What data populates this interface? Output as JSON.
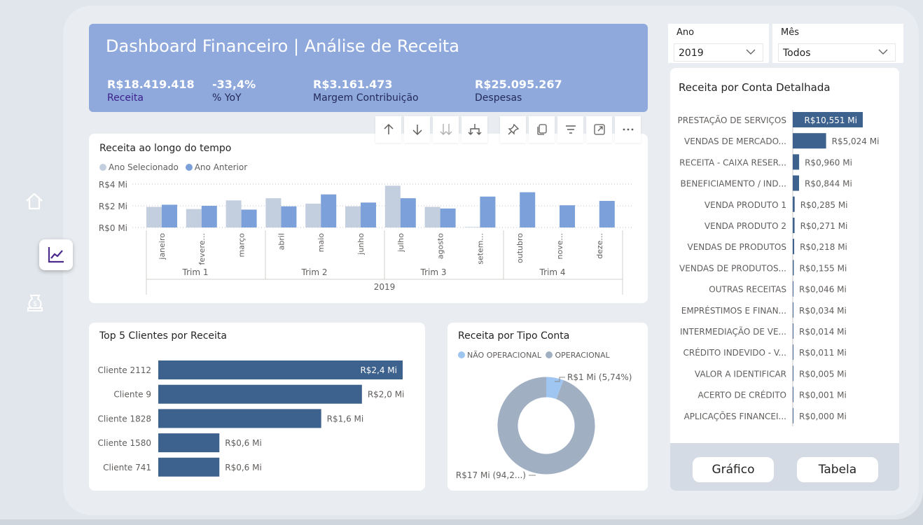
{
  "header": {
    "title": "Dashboard Financeiro | Análise de Receita",
    "kpis": [
      {
        "value": "R$18.419.418",
        "label": "Receita"
      },
      {
        "value": "-33,4%",
        "label": "% YoY"
      },
      {
        "value": "R$3.161.473",
        "label": "Margem Contribuição"
      },
      {
        "value": "R$25.095.267",
        "label": "Despesas"
      }
    ]
  },
  "nav": {
    "icons": [
      "home-icon",
      "trend-chart-icon",
      "money-bag-icon"
    ],
    "active": "trend-chart-icon"
  },
  "toolbar": {
    "icons": [
      "arrow-up-icon",
      "arrow-down-icon",
      "double-arrow-down-icon",
      "fork-down-icon",
      "pin-icon",
      "copy-icon",
      "filter-icon",
      "focus-mode-icon",
      "more-options-icon"
    ]
  },
  "slicers": {
    "ano": {
      "label": "Ano",
      "value": "2019"
    },
    "mes": {
      "label": "Mês",
      "value": "Todos"
    }
  },
  "time_chart": {
    "title": "Receita ao longo do tempo",
    "legend": [
      "Ano Selecionado",
      "Ano Anterior"
    ],
    "colors": {
      "selected": "#c3cfdf",
      "previous": "#7ca0d9"
    },
    "y_ticks": [
      "R$4 Mi",
      "R$2 Mi",
      "R$0 Mi"
    ],
    "months": [
      "janeiro",
      "fevere...",
      "março",
      "abril",
      "maio",
      "junho",
      "julho",
      "agosto",
      "setem...",
      "outubro",
      "nove...",
      "deze..."
    ],
    "quarters": [
      "Trim 1",
      "Trim 2",
      "Trim 3",
      "Trim 4"
    ],
    "year": "2019"
  },
  "clients": {
    "title": "Top 5 Clientes por Receita",
    "color": "#3e628e"
  },
  "tipo_conta": {
    "title": "Receita por Tipo Conta",
    "legend": [
      "NÃO OPERACIONAL",
      "OPERACIONAL"
    ],
    "colors": {
      "nao_operacional": "#9fc6f0",
      "operacional": "#a1afc2"
    },
    "labels": {
      "nao_operacional": "R$1 Mi (5,74%)",
      "operacional": "R$17 Mi (94,2...)"
    }
  },
  "detail": {
    "title": "Receita por Conta Detalhada",
    "color": "#3e628e",
    "buttons": {
      "grafico": "Gráfico",
      "tabela": "Tabela"
    }
  },
  "chart_data": [
    {
      "type": "bar",
      "title": "Receita ao longo do tempo",
      "categories": [
        "janeiro",
        "fevereiro",
        "março",
        "abril",
        "maio",
        "junho",
        "julho",
        "agosto",
        "setembro",
        "outubro",
        "novembro",
        "dezembro"
      ],
      "series": [
        {
          "name": "Ano Selecionado",
          "values": [
            1.9,
            1.7,
            2.5,
            2.7,
            2.2,
            1.95,
            3.85,
            1.9,
            0.05,
            0,
            0,
            0
          ]
        },
        {
          "name": "Ano Anterior",
          "values": [
            2.1,
            2.0,
            1.65,
            1.95,
            3.05,
            2.3,
            2.7,
            1.75,
            2.85,
            3.25,
            2.05,
            2.45
          ]
        }
      ],
      "ylim": [
        0,
        4
      ],
      "ylabel": "",
      "xlabel": "",
      "grid": true,
      "legend_position": "top-left"
    },
    {
      "type": "bar",
      "title": "Top 5 Clientes por Receita",
      "categories": [
        "Cliente 2112",
        "Cliente 9",
        "Cliente 1828",
        "Cliente 1580",
        "Cliente 741"
      ],
      "values": [
        2.4,
        2.0,
        1.6,
        0.6,
        0.6
      ],
      "data_labels": [
        "R$2,4 Mi",
        "R$2,0 Mi",
        "R$1,6 Mi",
        "R$0,6 Mi",
        "R$0,6 Mi"
      ]
    },
    {
      "type": "pie",
      "title": "Receita por Tipo Conta",
      "categories": [
        "NÃO OPERACIONAL",
        "OPERACIONAL"
      ],
      "values": [
        5.74,
        94.26
      ]
    },
    {
      "type": "bar",
      "title": "Receita por Conta Detalhada",
      "categories": [
        "PRESTAÇÃO DE SERVIÇOS",
        "VENDAS DE MERCADO...",
        "RECEITA - CAIXA RESER...",
        "BENEFICIAMENTO / IND...",
        "VENDA PRODUTO 1",
        "VENDA PRODUTO 2",
        "VENDAS DE PRODUTOS",
        "VENDAS DE PRODUTOS...",
        "OUTRAS RECEITAS",
        "EMPRÉSTIMOS E FINAN...",
        "INTERMEDIAÇÃO DE VE...",
        "CRÉDITO INDEVIDO - V...",
        "VALOR A IDENTIFICAR",
        "ACERTO DE CRÉDITO",
        "APLICAÇÕES FINANCEI..."
      ],
      "values": [
        10.551,
        5.024,
        0.96,
        0.844,
        0.285,
        0.271,
        0.218,
        0.155,
        0.046,
        0.034,
        0.014,
        0.011,
        0.005,
        0.001,
        0.0
      ],
      "data_labels": [
        "R$10,551 Mi",
        "R$5,024 Mi",
        "R$0,960 Mi",
        "R$0,844 Mi",
        "R$0,285 Mi",
        "R$0,271 Mi",
        "R$0,218 Mi",
        "R$0,155 Mi",
        "R$0,046 Mi",
        "R$0,034 Mi",
        "R$0,014 Mi",
        "R$0,011 Mi",
        "R$0,005 Mi",
        "R$0,001 Mi",
        "R$0,000 Mi"
      ]
    }
  ]
}
